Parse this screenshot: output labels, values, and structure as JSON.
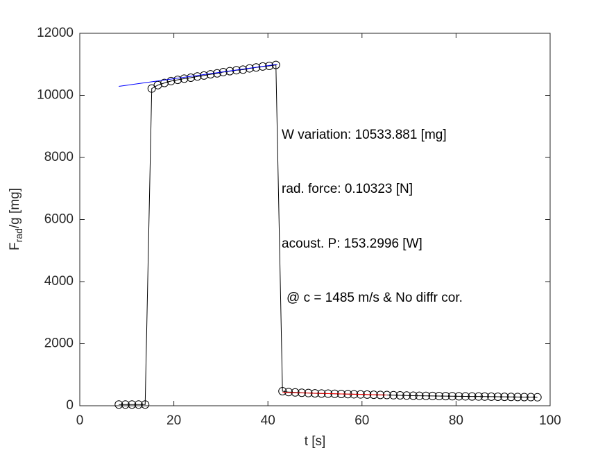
{
  "chart_data": {
    "type": "line",
    "xlabel": "t  [s]",
    "ylabel": [
      "F",
      "rad",
      "/g  [mg]"
    ],
    "xlim": [
      0,
      100
    ],
    "xticks": [
      0,
      20,
      40,
      60,
      80,
      100
    ],
    "ylim": [
      0,
      12000
    ],
    "yticks": [
      0,
      2000,
      4000,
      6000,
      8000,
      10000,
      12000
    ],
    "annotations": [
      "W variation:  10533.881  [mg]",
      "rad. force: 0.10323  [N]",
      "acoust. P:  153.2996  [W]",
      "@ c = 1485 m/s & No diffr cor."
    ],
    "series": [
      {
        "color": "#000000",
        "marker": "circle",
        "x": [
          8.3,
          9.7,
          11.1,
          12.5,
          13.9,
          15.3,
          16.6,
          18.0,
          19.4,
          20.8,
          22.2,
          23.6,
          25.0,
          26.4,
          27.8,
          29.2,
          30.5,
          31.9,
          33.3,
          34.7,
          36.1,
          37.5,
          38.9,
          40.3,
          41.7,
          43.1,
          44.4,
          45.8,
          47.2,
          48.6,
          50.0,
          51.4,
          52.8,
          54.2,
          55.6,
          57.0,
          58.3,
          59.7,
          61.1,
          62.5,
          63.9,
          65.3,
          66.7,
          68.1,
          69.5,
          70.9,
          72.2,
          73.6,
          75.0,
          76.4,
          77.8,
          79.2,
          80.6,
          82.0,
          83.4,
          84.8,
          86.1,
          87.5,
          88.9,
          90.3,
          91.7,
          93.1,
          94.5,
          95.9,
          97.3
        ],
        "values": [
          40,
          40,
          40,
          40,
          40,
          10220,
          10330,
          10400,
          10460,
          10500,
          10540,
          10570,
          10610,
          10640,
          10680,
          10710,
          10750,
          10780,
          10810,
          10830,
          10870,
          10900,
          10930,
          10950,
          10980,
          470,
          440,
          430,
          420,
          410,
          400,
          395,
          390,
          385,
          380,
          375,
          370,
          365,
          360,
          355,
          350,
          345,
          340,
          335,
          330,
          325,
          320,
          318,
          315,
          312,
          310,
          308,
          305,
          303,
          300,
          298,
          295,
          293,
          290,
          288,
          285,
          283,
          280,
          278,
          275
        ]
      },
      {
        "color": "#0000ff",
        "marker": "none",
        "x": [
          8.3,
          42
        ],
        "values": [
          10290,
          11000
        ]
      },
      {
        "color": "#ff0000",
        "marker": "none",
        "x": [
          43.1,
          65.3
        ],
        "values": [
          430,
          345
        ]
      }
    ]
  }
}
